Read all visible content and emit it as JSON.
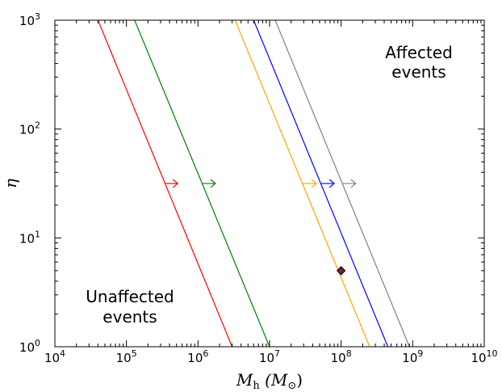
{
  "chart_data": {
    "type": "line",
    "xscale": "log",
    "yscale": "log",
    "xlim": [
      10000,
      10000000000
    ],
    "ylim": [
      1,
      1000
    ],
    "x_ticks": [
      {
        "base": "10",
        "exp": "4",
        "value": 10000
      },
      {
        "base": "10",
        "exp": "5",
        "value": 100000
      },
      {
        "base": "10",
        "exp": "6",
        "value": 1000000
      },
      {
        "base": "10",
        "exp": "7",
        "value": 10000000
      },
      {
        "base": "10",
        "exp": "8",
        "value": 100000000
      },
      {
        "base": "10",
        "exp": "9",
        "value": 1000000000
      },
      {
        "base": "10",
        "exp": "10",
        "value": 10000000000
      }
    ],
    "y_ticks": [
      {
        "base": "10",
        "exp": "0",
        "value": 1
      },
      {
        "base": "10",
        "exp": "1",
        "value": 10
      },
      {
        "base": "10",
        "exp": "2",
        "value": 100
      },
      {
        "base": "10",
        "exp": "3",
        "value": 1000
      }
    ],
    "xlabel": {
      "main": "M",
      "sub": "h",
      "unit_open": " (M",
      "unit_sub": "⊙",
      "unit_close": ")"
    },
    "ylabel": "η",
    "annotations": {
      "upper_right": [
        "Affected",
        "events"
      ],
      "lower_left": [
        "Unaffected",
        "events"
      ]
    },
    "grid": false,
    "series": [
      {
        "color": "#ff0000",
        "x": [
          40000,
          3000000
        ],
        "y": [
          1000,
          1
        ],
        "arrow_from": 350000,
        "arrow_to": 520000,
        "arrow_y": 31.6
      },
      {
        "color": "#008000",
        "x": [
          130000,
          10000000
        ],
        "y": [
          1000,
          1
        ],
        "arrow_from": 1150000,
        "arrow_to": 1750000,
        "arrow_y": 31.6
      },
      {
        "color": "#ffa500",
        "x": [
          3300000,
          250000000
        ],
        "y": [
          1000,
          1
        ],
        "arrow_from": 29000000,
        "arrow_to": 45000000,
        "arrow_y": 31.6
      },
      {
        "color": "#0000ff",
        "x": [
          6000000,
          450000000
        ],
        "y": [
          1000,
          1
        ],
        "arrow_from": 52000000,
        "arrow_to": 80000000,
        "arrow_y": 31.6
      },
      {
        "color": "#808080",
        "x": [
          12000000,
          900000000
        ],
        "y": [
          1000,
          1
        ],
        "arrow_from": 105000000,
        "arrow_to": 160000000,
        "arrow_y": 31.6
      }
    ],
    "marker": {
      "x": 100000000,
      "y": 5,
      "shape": "diamond",
      "fill": "#7a1f3d",
      "edge": "#000000"
    }
  }
}
